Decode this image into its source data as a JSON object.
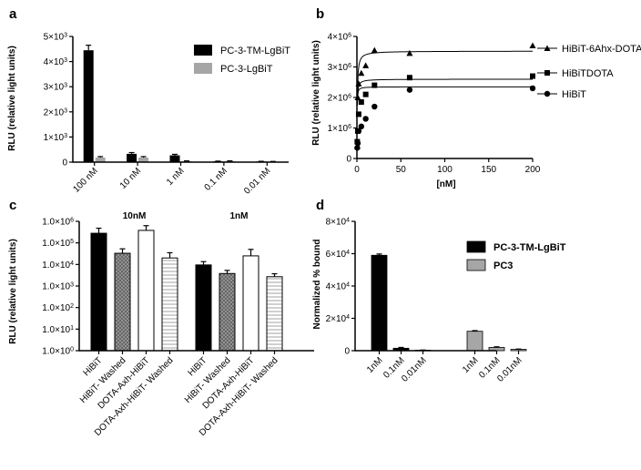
{
  "panels": {
    "a": {
      "letter": "a",
      "ylabel": "RLU (relative light units)",
      "yticks": [
        {
          "value": 0,
          "base": "0",
          "exp": ""
        },
        {
          "value": 1000,
          "base": "1×10",
          "exp": "3"
        },
        {
          "value": 2000,
          "base": "2×10",
          "exp": "3"
        },
        {
          "value": 3000,
          "base": "3×10",
          "exp": "3"
        },
        {
          "value": 4000,
          "base": "4×10",
          "exp": "3"
        },
        {
          "value": 5000,
          "base": "5×10",
          "exp": "3"
        }
      ],
      "ylim": [
        0,
        5000
      ],
      "categories": [
        "100 nM",
        "10 nM",
        "1 nM",
        "0.1 nM",
        "0.01 nM"
      ],
      "series": [
        {
          "name": "PC-3-TM-LgBiT",
          "color": "#000000",
          "values": [
            4450,
            330,
            270,
            30,
            25
          ],
          "errors": [
            200,
            50,
            40,
            10,
            8
          ]
        },
        {
          "name": "PC-3-LgBiT",
          "color": "#a6a6a6",
          "values": [
            180,
            180,
            40,
            40,
            20
          ],
          "errors": [
            40,
            40,
            10,
            10,
            8
          ]
        }
      ]
    },
    "b": {
      "letter": "b",
      "ylabel": "RLU (relative light units)",
      "xlabel": "[nM]",
      "xticks": [
        0,
        50,
        100,
        150,
        200
      ],
      "xlim": [
        0,
        200
      ],
      "yticks": [
        {
          "value": 0,
          "base": "0",
          "exp": ""
        },
        {
          "value": 1000000,
          "base": "1×10",
          "exp": "6"
        },
        {
          "value": 2000000,
          "base": "2×10",
          "exp": "6"
        },
        {
          "value": 3000000,
          "base": "3×10",
          "exp": "6"
        },
        {
          "value": 4000000,
          "base": "4×10",
          "exp": "6"
        }
      ],
      "ylim": [
        0,
        4000000
      ],
      "series": [
        {
          "name": "HiBiT-6Ahx-DOTA",
          "marker": "triangle",
          "points": [
            [
              0.4,
              400000
            ],
            [
              1,
              2000000
            ],
            [
              2,
              2450000
            ],
            [
              5,
              2800000
            ],
            [
              10,
              3050000
            ],
            [
              20,
              3550000
            ],
            [
              60,
              3450000
            ],
            [
              200,
              3700000
            ]
          ],
          "plateau": 3520000,
          "k": 0.35
        },
        {
          "name": "HiBiTDOTA",
          "marker": "square",
          "points": [
            [
              0.4,
              550000
            ],
            [
              1,
              900000
            ],
            [
              2,
              1450000
            ],
            [
              5,
              1850000
            ],
            [
              10,
              2100000
            ],
            [
              20,
              2400000
            ],
            [
              60,
              2650000
            ],
            [
              200,
              2700000
            ]
          ],
          "plateau": 2600000,
          "k": 0.2
        },
        {
          "name": "HiBiT",
          "marker": "circle",
          "points": [
            [
              0.4,
              350000
            ],
            [
              1,
              500000
            ],
            [
              2,
              900000
            ],
            [
              5,
              1050000
            ],
            [
              10,
              1300000
            ],
            [
              20,
              1700000
            ],
            [
              60,
              2250000
            ],
            [
              200,
              2300000
            ]
          ],
          "plateau": 2350000,
          "k": 0.1
        }
      ]
    },
    "c": {
      "letter": "c",
      "ylabel": "RLU (relative light units)",
      "yticks": [
        {
          "value": 1,
          "base": "1.0×10",
          "exp": "0"
        },
        {
          "value": 10,
          "base": "1.0×10",
          "exp": "1"
        },
        {
          "value": 100,
          "base": "1.0×10",
          "exp": "2"
        },
        {
          "value": 1000,
          "base": "1.0×10",
          "exp": "3"
        },
        {
          "value": 10000,
          "base": "1.0×10",
          "exp": "4"
        },
        {
          "value": 100000,
          "base": "1.0×10",
          "exp": "5"
        },
        {
          "value": 1000000,
          "base": "1.0×10",
          "exp": "6"
        }
      ],
      "scale": "log",
      "ylim": [
        1,
        1000000
      ],
      "groups": [
        {
          "label": "10nM",
          "bars": [
            {
              "category": "HiBiT",
              "value": 280000,
              "error": 200000,
              "fill": "black"
            },
            {
              "category": "HiBiT- Washed",
              "value": 33000,
              "error": 20000,
              "fill": "crosshatch"
            },
            {
              "category": "DOTA-Axh-HiBiT",
              "value": 380000,
              "error": 250000,
              "fill": "white"
            },
            {
              "category": "DOTA-Axh-HiBiT- Washed",
              "value": 20000,
              "error": 15000,
              "fill": "lines"
            }
          ]
        },
        {
          "label": "1nM",
          "bars": [
            {
              "category": "HiBiT",
              "value": 9500,
              "error": 4000,
              "fill": "black"
            },
            {
              "category": "HiBiT- Washed",
              "value": 3800,
              "error": 1500,
              "fill": "crosshatch"
            },
            {
              "category": "DOTA-Axh-HiBiT",
              "value": 25000,
              "error": 25000,
              "fill": "white"
            },
            {
              "category": "DOTA-Axh-HiBiT- Washed",
              "value": 2700,
              "error": 1000,
              "fill": "lines"
            }
          ]
        }
      ]
    },
    "d": {
      "letter": "d",
      "ylabel": "Normalized % bound",
      "yticks": [
        {
          "value": 0,
          "base": "0",
          "exp": ""
        },
        {
          "value": 20000,
          "base": "2×10",
          "exp": "4"
        },
        {
          "value": 40000,
          "base": "4×10",
          "exp": "4"
        },
        {
          "value": 60000,
          "base": "6×10",
          "exp": "4"
        },
        {
          "value": 80000,
          "base": "8×10",
          "exp": "4"
        }
      ],
      "ylim": [
        0,
        80000
      ],
      "series": [
        {
          "name": "PC-3-TM-LgBiT",
          "color": "#000000",
          "categories": [
            "1nM",
            "0.1nM",
            "0.01nM"
          ],
          "values": [
            59000,
            1500,
            300
          ],
          "errors": [
            800,
            500,
            100
          ]
        },
        {
          "name": "PC3",
          "color": "#a6a6a6",
          "categories": [
            "1nM",
            "0.1nM",
            "0.01nM"
          ],
          "values": [
            12000,
            2000,
            800
          ],
          "errors": [
            400,
            400,
            200
          ]
        }
      ]
    }
  },
  "chart_data": [
    {
      "type": "bar",
      "categories": [
        "100 nM",
        "10 nM",
        "1 nM",
        "0.1 nM",
        "0.01 nM"
      ],
      "series": [
        {
          "name": "PC-3-TM-LgBiT",
          "values": [
            4450,
            330,
            270,
            30,
            25
          ]
        },
        {
          "name": "PC-3-LgBiT",
          "values": [
            180,
            180,
            40,
            40,
            20
          ]
        }
      ],
      "ylabel": "RLU (relative light units)",
      "ylim": [
        0,
        5000
      ],
      "legend": "top-right"
    },
    {
      "type": "scatter",
      "series": [
        {
          "name": "HiBiT-6Ahx-DOTA",
          "x": [
            0.4,
            1,
            2,
            5,
            10,
            20,
            60,
            200
          ],
          "y": [
            400000,
            2000000,
            2450000,
            2800000,
            3050000,
            3550000,
            3450000,
            3700000
          ]
        },
        {
          "name": "HiBiTDOTA",
          "x": [
            0.4,
            1,
            2,
            5,
            10,
            20,
            60,
            200
          ],
          "y": [
            550000,
            900000,
            1450000,
            1850000,
            2100000,
            2400000,
            2650000,
            2700000
          ]
        },
        {
          "name": "HiBiT",
          "x": [
            0.4,
            1,
            2,
            5,
            10,
            20,
            60,
            200
          ],
          "y": [
            350000,
            500000,
            900000,
            1050000,
            1300000,
            1700000,
            2250000,
            2300000
          ]
        }
      ],
      "xlabel": "[nM]",
      "ylabel": "RLU (relative light units)",
      "xlim": [
        0,
        200
      ],
      "ylim": [
        0,
        4000000
      ],
      "legend": "right"
    },
    {
      "type": "bar",
      "scale": "log",
      "groups": [
        "10nM",
        "1nM"
      ],
      "categories": [
        "HiBiT",
        "HiBiT- Washed",
        "DOTA-Axh-HiBiT",
        "DOTA-Axh-HiBiT- Washed"
      ],
      "values": [
        [
          280000,
          33000,
          380000,
          20000
        ],
        [
          9500,
          3800,
          25000,
          2700
        ]
      ],
      "ylabel": "RLU (relative light units)",
      "ylim": [
        1,
        1000000
      ]
    },
    {
      "type": "bar",
      "categories": [
        "1nM",
        "0.1nM",
        "0.01nM"
      ],
      "series": [
        {
          "name": "PC-3-TM-LgBiT",
          "values": [
            59000,
            1500,
            300
          ]
        },
        {
          "name": "PC3",
          "values": [
            12000,
            2000,
            800
          ]
        }
      ],
      "ylabel": "Normalized % bound",
      "ylim": [
        0,
        80000
      ],
      "legend": "top-right"
    }
  ]
}
